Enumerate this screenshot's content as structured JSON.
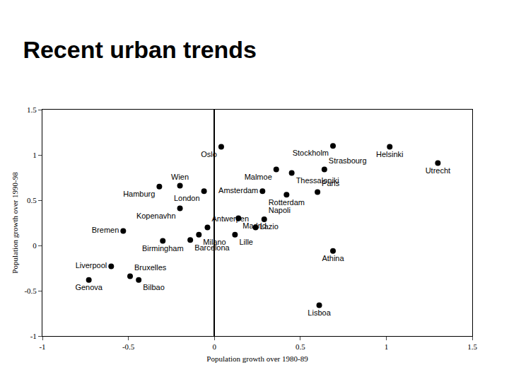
{
  "chart_data": {
    "type": "scatter",
    "title": "Recent urban trends",
    "x_label": "Population growth over 1980-89",
    "y_label": "Population growth over 1990-98",
    "points": [
      {
        "label": "Oslo",
        "x": 0.04,
        "y": 1.09
      },
      {
        "label": "Stockholm",
        "x": 0.69,
        "y": 1.1
      },
      {
        "label": "Helsinki",
        "x": 1.02,
        "y": 1.09
      },
      {
        "label": "Utrecht",
        "x": 1.3,
        "y": 0.91
      },
      {
        "label": "Strasbourg",
        "x": 0.64,
        "y": 0.84
      },
      {
        "label": "Malmoe",
        "x": 0.36,
        "y": 0.84
      },
      {
        "label": "Thessaloniki",
        "x": 0.45,
        "y": 0.8
      },
      {
        "label": "Amsterdam",
        "x": 0.28,
        "y": 0.6
      },
      {
        "label": "Paris",
        "x": 0.6,
        "y": 0.59
      },
      {
        "label": "Rotterdam",
        "x": 0.42,
        "y": 0.56
      },
      {
        "label": "Hamburg",
        "x": -0.32,
        "y": 0.65
      },
      {
        "label": "Wien",
        "x": -0.2,
        "y": 0.66
      },
      {
        "label": "London",
        "x": -0.06,
        "y": 0.6
      },
      {
        "label": "Kopenavhn",
        "x": -0.2,
        "y": 0.41
      },
      {
        "label": "Madrid",
        "x": 0.14,
        "y": 0.3
      },
      {
        "label": "Napoli",
        "x": 0.29,
        "y": 0.29
      },
      {
        "label": "Antwerpen",
        "x": -0.04,
        "y": 0.2
      },
      {
        "label": "Lazio",
        "x": 0.24,
        "y": 0.2
      },
      {
        "label": "Milano",
        "x": -0.09,
        "y": 0.12
      },
      {
        "label": "Lille",
        "x": 0.12,
        "y": 0.12
      },
      {
        "label": "Barcelona",
        "x": -0.14,
        "y": 0.06
      },
      {
        "label": "Birmingham",
        "x": -0.3,
        "y": 0.05
      },
      {
        "label": "Bremen",
        "x": -0.53,
        "y": 0.16
      },
      {
        "label": "Athina",
        "x": 0.69,
        "y": -0.06
      },
      {
        "label": "Liverpool",
        "x": -0.6,
        "y": -0.23
      },
      {
        "label": "Bruxelles",
        "x": -0.49,
        "y": -0.34
      },
      {
        "label": "Genova",
        "x": -0.73,
        "y": -0.38
      },
      {
        "label": "Bilbao",
        "x": -0.44,
        "y": -0.38
      },
      {
        "label": "Lisboa",
        "x": 0.61,
        "y": -0.66
      }
    ],
    "xlim": [
      -1,
      1.5
    ],
    "xticks": [
      -1,
      -0.5,
      0,
      0.5,
      1,
      1.5
    ],
    "ylim": [
      -1,
      1.5
    ],
    "yticks": [
      -1,
      -0.5,
      0,
      0.5,
      1,
      1.5
    ],
    "color": "#000000",
    "marker": "circle",
    "data_labels": true
  }
}
